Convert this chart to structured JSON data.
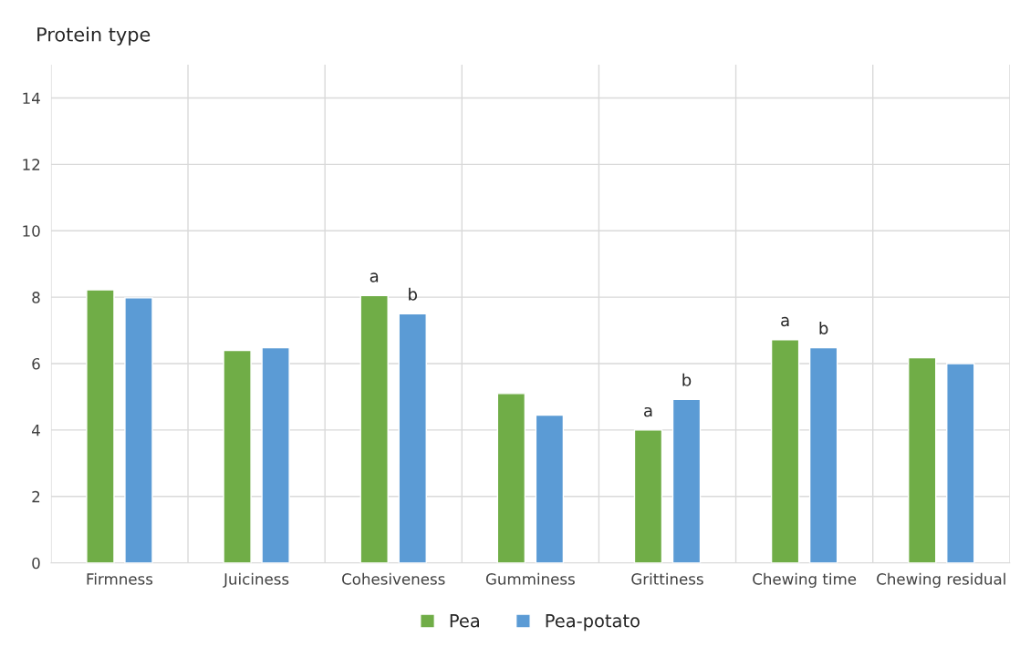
{
  "chart_data": {
    "type": "bar",
    "title": "Protein type",
    "categories": [
      "Firmness",
      "Juiciness",
      "Cohesiveness",
      "Gumminess",
      "Grittiness",
      "Chewing time",
      "Chewing residual"
    ],
    "series": [
      {
        "name": "Pea",
        "color": "#70ad47",
        "values": [
          8.22,
          6.4,
          8.05,
          5.1,
          4.0,
          6.72,
          6.18
        ],
        "value_labels": [
          null,
          null,
          "a",
          null,
          "a",
          "a",
          null
        ]
      },
      {
        "name": "Pea-potato",
        "color": "#5b9bd5",
        "values": [
          7.98,
          6.48,
          7.5,
          4.45,
          4.92,
          6.48,
          6.0
        ],
        "value_labels": [
          null,
          null,
          "b",
          null,
          "b",
          "b",
          null
        ]
      }
    ],
    "ylim": [
      0,
      15
    ],
    "yticks": [
      0,
      2,
      4,
      6,
      8,
      10,
      12,
      14
    ],
    "grid": true,
    "legend": "bottom"
  }
}
